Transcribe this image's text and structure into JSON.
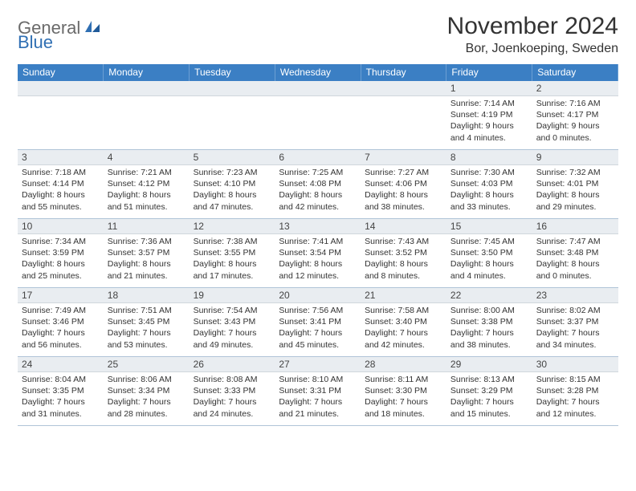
{
  "logo": {
    "text1": "General",
    "text2": "Blue"
  },
  "title": "November 2024",
  "location": "Bor, Joenkoeping, Sweden",
  "colors": {
    "header_bg": "#3b7fc4",
    "header_text": "#ffffff",
    "row_border": "#3b7fc4",
    "daynum_bg": "#e9edf1",
    "logo_gray": "#6a6a6a",
    "logo_blue": "#2f6fb3"
  },
  "weekdays": [
    "Sunday",
    "Monday",
    "Tuesday",
    "Wednesday",
    "Thursday",
    "Friday",
    "Saturday"
  ],
  "weeks": [
    [
      null,
      null,
      null,
      null,
      null,
      {
        "day": "1",
        "sunrise": "Sunrise: 7:14 AM",
        "sunset": "Sunset: 4:19 PM",
        "dl1": "Daylight: 9 hours",
        "dl2": "and 4 minutes."
      },
      {
        "day": "2",
        "sunrise": "Sunrise: 7:16 AM",
        "sunset": "Sunset: 4:17 PM",
        "dl1": "Daylight: 9 hours",
        "dl2": "and 0 minutes."
      }
    ],
    [
      {
        "day": "3",
        "sunrise": "Sunrise: 7:18 AM",
        "sunset": "Sunset: 4:14 PM",
        "dl1": "Daylight: 8 hours",
        "dl2": "and 55 minutes."
      },
      {
        "day": "4",
        "sunrise": "Sunrise: 7:21 AM",
        "sunset": "Sunset: 4:12 PM",
        "dl1": "Daylight: 8 hours",
        "dl2": "and 51 minutes."
      },
      {
        "day": "5",
        "sunrise": "Sunrise: 7:23 AM",
        "sunset": "Sunset: 4:10 PM",
        "dl1": "Daylight: 8 hours",
        "dl2": "and 47 minutes."
      },
      {
        "day": "6",
        "sunrise": "Sunrise: 7:25 AM",
        "sunset": "Sunset: 4:08 PM",
        "dl1": "Daylight: 8 hours",
        "dl2": "and 42 minutes."
      },
      {
        "day": "7",
        "sunrise": "Sunrise: 7:27 AM",
        "sunset": "Sunset: 4:06 PM",
        "dl1": "Daylight: 8 hours",
        "dl2": "and 38 minutes."
      },
      {
        "day": "8",
        "sunrise": "Sunrise: 7:30 AM",
        "sunset": "Sunset: 4:03 PM",
        "dl1": "Daylight: 8 hours",
        "dl2": "and 33 minutes."
      },
      {
        "day": "9",
        "sunrise": "Sunrise: 7:32 AM",
        "sunset": "Sunset: 4:01 PM",
        "dl1": "Daylight: 8 hours",
        "dl2": "and 29 minutes."
      }
    ],
    [
      {
        "day": "10",
        "sunrise": "Sunrise: 7:34 AM",
        "sunset": "Sunset: 3:59 PM",
        "dl1": "Daylight: 8 hours",
        "dl2": "and 25 minutes."
      },
      {
        "day": "11",
        "sunrise": "Sunrise: 7:36 AM",
        "sunset": "Sunset: 3:57 PM",
        "dl1": "Daylight: 8 hours",
        "dl2": "and 21 minutes."
      },
      {
        "day": "12",
        "sunrise": "Sunrise: 7:38 AM",
        "sunset": "Sunset: 3:55 PM",
        "dl1": "Daylight: 8 hours",
        "dl2": "and 17 minutes."
      },
      {
        "day": "13",
        "sunrise": "Sunrise: 7:41 AM",
        "sunset": "Sunset: 3:54 PM",
        "dl1": "Daylight: 8 hours",
        "dl2": "and 12 minutes."
      },
      {
        "day": "14",
        "sunrise": "Sunrise: 7:43 AM",
        "sunset": "Sunset: 3:52 PM",
        "dl1": "Daylight: 8 hours",
        "dl2": "and 8 minutes."
      },
      {
        "day": "15",
        "sunrise": "Sunrise: 7:45 AM",
        "sunset": "Sunset: 3:50 PM",
        "dl1": "Daylight: 8 hours",
        "dl2": "and 4 minutes."
      },
      {
        "day": "16",
        "sunrise": "Sunrise: 7:47 AM",
        "sunset": "Sunset: 3:48 PM",
        "dl1": "Daylight: 8 hours",
        "dl2": "and 0 minutes."
      }
    ],
    [
      {
        "day": "17",
        "sunrise": "Sunrise: 7:49 AM",
        "sunset": "Sunset: 3:46 PM",
        "dl1": "Daylight: 7 hours",
        "dl2": "and 56 minutes."
      },
      {
        "day": "18",
        "sunrise": "Sunrise: 7:51 AM",
        "sunset": "Sunset: 3:45 PM",
        "dl1": "Daylight: 7 hours",
        "dl2": "and 53 minutes."
      },
      {
        "day": "19",
        "sunrise": "Sunrise: 7:54 AM",
        "sunset": "Sunset: 3:43 PM",
        "dl1": "Daylight: 7 hours",
        "dl2": "and 49 minutes."
      },
      {
        "day": "20",
        "sunrise": "Sunrise: 7:56 AM",
        "sunset": "Sunset: 3:41 PM",
        "dl1": "Daylight: 7 hours",
        "dl2": "and 45 minutes."
      },
      {
        "day": "21",
        "sunrise": "Sunrise: 7:58 AM",
        "sunset": "Sunset: 3:40 PM",
        "dl1": "Daylight: 7 hours",
        "dl2": "and 42 minutes."
      },
      {
        "day": "22",
        "sunrise": "Sunrise: 8:00 AM",
        "sunset": "Sunset: 3:38 PM",
        "dl1": "Daylight: 7 hours",
        "dl2": "and 38 minutes."
      },
      {
        "day": "23",
        "sunrise": "Sunrise: 8:02 AM",
        "sunset": "Sunset: 3:37 PM",
        "dl1": "Daylight: 7 hours",
        "dl2": "and 34 minutes."
      }
    ],
    [
      {
        "day": "24",
        "sunrise": "Sunrise: 8:04 AM",
        "sunset": "Sunset: 3:35 PM",
        "dl1": "Daylight: 7 hours",
        "dl2": "and 31 minutes."
      },
      {
        "day": "25",
        "sunrise": "Sunrise: 8:06 AM",
        "sunset": "Sunset: 3:34 PM",
        "dl1": "Daylight: 7 hours",
        "dl2": "and 28 minutes."
      },
      {
        "day": "26",
        "sunrise": "Sunrise: 8:08 AM",
        "sunset": "Sunset: 3:33 PM",
        "dl1": "Daylight: 7 hours",
        "dl2": "and 24 minutes."
      },
      {
        "day": "27",
        "sunrise": "Sunrise: 8:10 AM",
        "sunset": "Sunset: 3:31 PM",
        "dl1": "Daylight: 7 hours",
        "dl2": "and 21 minutes."
      },
      {
        "day": "28",
        "sunrise": "Sunrise: 8:11 AM",
        "sunset": "Sunset: 3:30 PM",
        "dl1": "Daylight: 7 hours",
        "dl2": "and 18 minutes."
      },
      {
        "day": "29",
        "sunrise": "Sunrise: 8:13 AM",
        "sunset": "Sunset: 3:29 PM",
        "dl1": "Daylight: 7 hours",
        "dl2": "and 15 minutes."
      },
      {
        "day": "30",
        "sunrise": "Sunrise: 8:15 AM",
        "sunset": "Sunset: 3:28 PM",
        "dl1": "Daylight: 7 hours",
        "dl2": "and 12 minutes."
      }
    ]
  ]
}
